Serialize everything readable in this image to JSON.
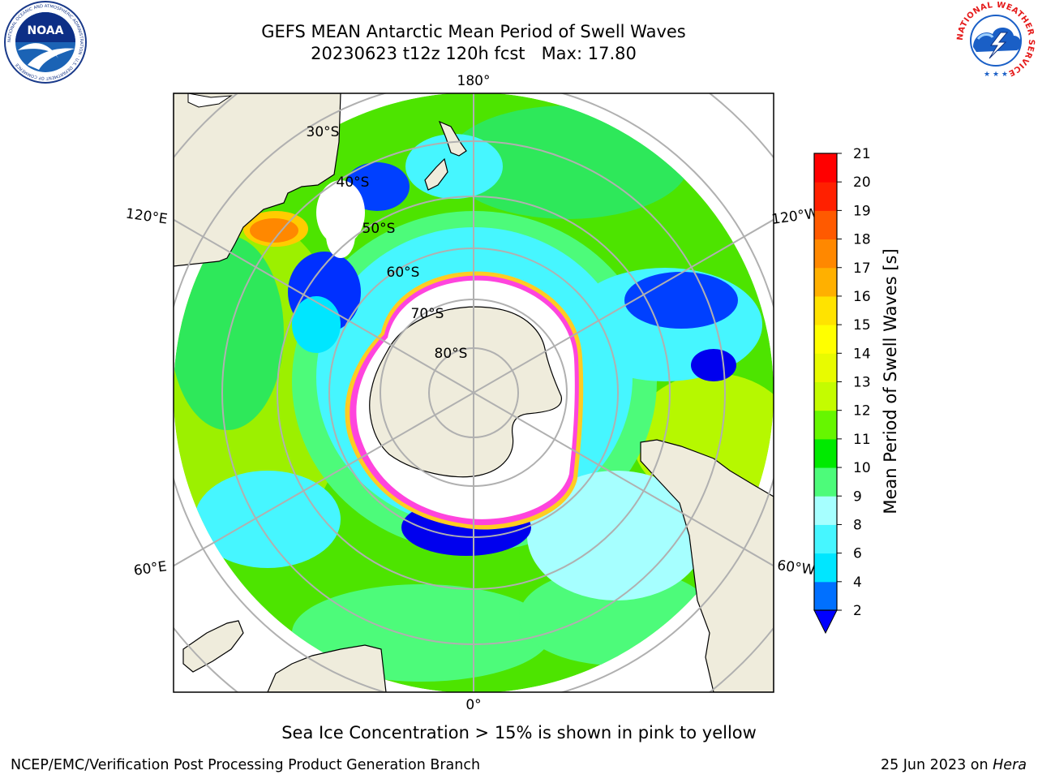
{
  "header": {
    "title_line1": "GEFS MEAN Antarctic Mean Period of Swell Waves",
    "title_line2": "20230623 t12z 120h fcst   Max: 17.80"
  },
  "logos": {
    "noaa": {
      "text": "NOAA",
      "ring_text": "NATIONAL OCEANIC AND ATMOSPHERIC ADMINISTRATION · U.S. DEPARTMENT OF COMMERCE"
    },
    "nws": {
      "ring_text": "NATIONAL WEATHER SERVICE"
    }
  },
  "map": {
    "projection": "south-polar-stereographic",
    "lon_labels": {
      "top": "180°",
      "bottom": "0°",
      "left_upper": "120°E",
      "left_lower": "60°E",
      "right_upper": "120°W",
      "right_lower": "60°W"
    },
    "lat_labels": [
      "30°S",
      "40°S",
      "50°S",
      "60°S",
      "70°S",
      "80°S"
    ],
    "colors": {
      "land": "#efecdc",
      "ice_core": "#ffffff",
      "ice_edge_pink": "#ff44dd",
      "ice_edge_yellow": "#ffcc22",
      "gridline": "#b0b0b0"
    }
  },
  "colorbar": {
    "label": "Mean Period of Swell Waves [s]",
    "ticks": [
      "2",
      "4",
      "6",
      "8",
      "9",
      "10",
      "11",
      "12",
      "13",
      "14",
      "15",
      "16",
      "17",
      "18",
      "19",
      "20",
      "21"
    ],
    "colors": [
      "#0000ff",
      "#0070ff",
      "#00e6ff",
      "#46f6ff",
      "#a6ffff",
      "#4dfb7a",
      "#00ea00",
      "#66f600",
      "#c4fc00",
      "#e8fb00",
      "#ffff00",
      "#ffe300",
      "#ffb000",
      "#ff8800",
      "#ff5a00",
      "#ff2000",
      "#ff0000"
    ],
    "extend": "min"
  },
  "caption": "Sea Ice Concentration > 15% is shown in pink to yellow",
  "footer": {
    "left": "NCEP/EMC/Verification Post Processing Product Generation Branch",
    "right_date": "25 Jun 2023 on ",
    "right_host": "Hera"
  }
}
